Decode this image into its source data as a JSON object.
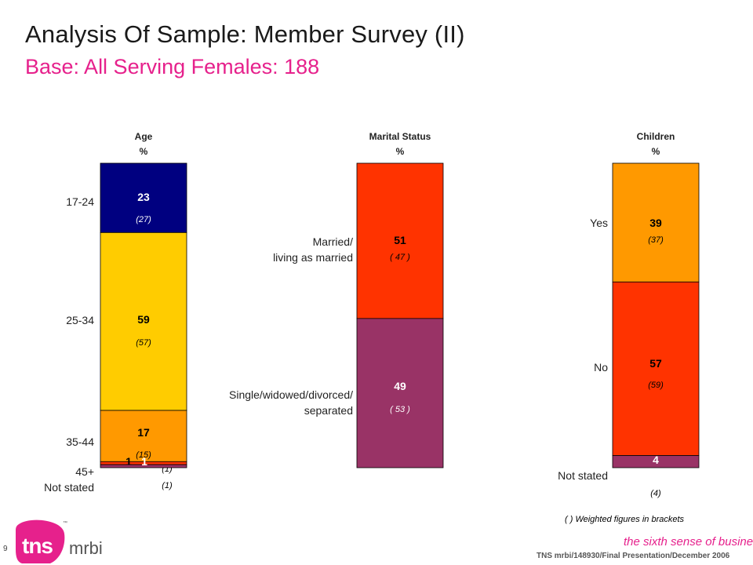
{
  "header": {
    "title": "Analysis Of Sample: Member Survey (II)",
    "subtitle": "Base:  All Serving Females:  188"
  },
  "chart_data": [
    {
      "type": "bar",
      "stacked": true,
      "title": "Age\n%",
      "categories": [
        "17-24",
        "25-34",
        "35-44",
        "45+",
        "Not stated"
      ],
      "values": [
        23,
        59,
        17,
        1,
        1
      ],
      "weighted_values": [
        "(27)",
        "(57)",
        "(15)",
        "(1)",
        "(1)"
      ],
      "colors": [
        "#000080",
        "#ffcc00",
        "#ff9900",
        "#ff3300",
        "#993366"
      ],
      "ylim": [
        0,
        101
      ]
    },
    {
      "type": "bar",
      "stacked": true,
      "title": "Marital Status\n%",
      "categories": [
        "Married/\nliving as married",
        "Single/widowed/divorced/\nseparated"
      ],
      "values": [
        51,
        49
      ],
      "weighted_values": [
        "( 47 )",
        "( 53 )"
      ],
      "colors": [
        "#ff3300",
        "#993366"
      ],
      "ylim": [
        0,
        100
      ]
    },
    {
      "type": "bar",
      "stacked": true,
      "title": "Children\n%",
      "categories": [
        "Yes",
        "No",
        "Not stated"
      ],
      "values": [
        39,
        57,
        4
      ],
      "weighted_values": [
        "(37)",
        "(59)",
        "(4)"
      ],
      "colors": [
        "#ff9900",
        "#ff3300",
        "#993366"
      ],
      "ylim": [
        0,
        100
      ]
    }
  ],
  "footnote": "( ) Weighted figures in brackets",
  "footer": {
    "slide_number": "9",
    "reference": "TNS mrbi/148930/Final Presentation/December 2006",
    "tagline": "the sixth sense of business",
    "tagline_tm": "™",
    "logo_text": "tns",
    "logo_sub": "mrbi",
    "logo_tm": "™"
  },
  "logo": {
    "color": "#e6218c",
    "name": "tns-mrbi-logo"
  }
}
